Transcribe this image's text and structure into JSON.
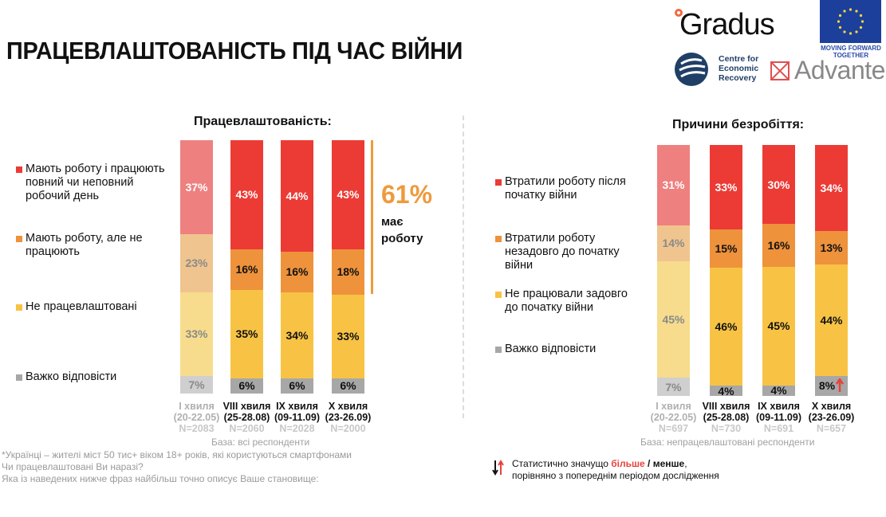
{
  "page": {
    "title": "ПРАЦЕВЛАШТОВАНІСТЬ ПІД ЧАС ВІЙНИ"
  },
  "logos": {
    "gradus": "Gradus",
    "eu_caption_line1": "MOVING FORWARD",
    "eu_caption_line2": "TOGETHER",
    "cer_line1": "Centre for",
    "cer_line2": "Economic",
    "cer_line3": "Recovery",
    "advante": "Advante"
  },
  "colors": {
    "red": "#ec3b35",
    "orange": "#ee923c",
    "yellow": "#f8c344",
    "gray": "#a7a7a7",
    "red_faded": "#ee8080",
    "orange_faded": "#f0c48e",
    "yellow_faded": "#f6dc8c",
    "gray_faded": "#cfcfcf",
    "accent_orange": "#ee9a3c"
  },
  "callout": {
    "value": "61%",
    "line1": "має",
    "line2": "роботу"
  },
  "significance_legend": {
    "prefix": "Статистично значущо ",
    "more": "більше",
    "sep": " / ",
    "less": "менше",
    "suffix": ",",
    "line2": "порівняно з попереднім періодом дослідження"
  },
  "footnotes": {
    "line1": "*Українці – жителі міст 50 тис+ віком 18+ років, які користуються смартфонами",
    "line2": "Чи працевлаштовані Ви наразі?",
    "line3": "Яка із наведених нижче фраз найбільш точно описує Ваше становище:"
  },
  "chart_data": [
    {
      "type": "bar",
      "stacked": true,
      "orientation": "vertical",
      "title": "Працевлаштованість:",
      "base_note": "База: всі респонденти",
      "categories": [
        {
          "wave": "I хвиля",
          "dates": "(20-22.05)",
          "n": "N=2083",
          "faded": true
        },
        {
          "wave": "VIII хвиля",
          "dates": "(25-28.08)",
          "n": "N=2060",
          "faded": false
        },
        {
          "wave": "IX хвиля",
          "dates": "(09-11.09)",
          "n": "N=2028",
          "faded": false
        },
        {
          "wave": "X хвиля",
          "dates": "(23-26.09)",
          "n": "N=2000",
          "faded": false
        }
      ],
      "series": [
        {
          "name": "Мають роботу і працюють повний чи неповний робочий день",
          "color_key": "red",
          "values": [
            37,
            43,
            44,
            43
          ]
        },
        {
          "name": "Мають роботу, але не працюють",
          "color_key": "orange",
          "values": [
            23,
            16,
            16,
            18
          ]
        },
        {
          "name": "Не працевлаштовані",
          "color_key": "yellow",
          "values": [
            33,
            35,
            34,
            33
          ]
        },
        {
          "name": "Важко відповісти",
          "color_key": "gray",
          "values": [
            7,
            6,
            6,
            6
          ]
        }
      ],
      "significance": [],
      "unit": "%",
      "ylim": [
        0,
        100
      ],
      "grid": false,
      "legend_position": "left"
    },
    {
      "type": "bar",
      "stacked": true,
      "orientation": "vertical",
      "title": "Причини безробіття:",
      "base_note": "База: непрацевлаштовані респонденти",
      "categories": [
        {
          "wave": "I хвиля",
          "dates": "(20-22.05)",
          "n": "N=697",
          "faded": true
        },
        {
          "wave": "VIII хвиля",
          "dates": "(25-28.08)",
          "n": "N=730",
          "faded": false
        },
        {
          "wave": "IX хвиля",
          "dates": "(09-11.09)",
          "n": "N=691",
          "faded": false
        },
        {
          "wave": "X хвиля",
          "dates": "(23-26.09)",
          "n": "N=657",
          "faded": false
        }
      ],
      "series": [
        {
          "name": "Втратили роботу після початку війни",
          "color_key": "red",
          "values": [
            31,
            33,
            30,
            34
          ]
        },
        {
          "name": "Втратили роботу незадовго до початку війни",
          "color_key": "orange",
          "values": [
            14,
            15,
            16,
            13
          ]
        },
        {
          "name": "Не працювали задовго до початку війни",
          "color_key": "yellow",
          "values": [
            45,
            46,
            45,
            44
          ]
        },
        {
          "name": "Важко відповісти",
          "color_key": "gray",
          "values": [
            7,
            4,
            4,
            8
          ]
        }
      ],
      "significance": [
        {
          "series": 3,
          "category": 3,
          "direction": "up"
        }
      ],
      "unit": "%",
      "ylim": [
        0,
        100
      ],
      "grid": false,
      "legend_position": "left"
    }
  ]
}
